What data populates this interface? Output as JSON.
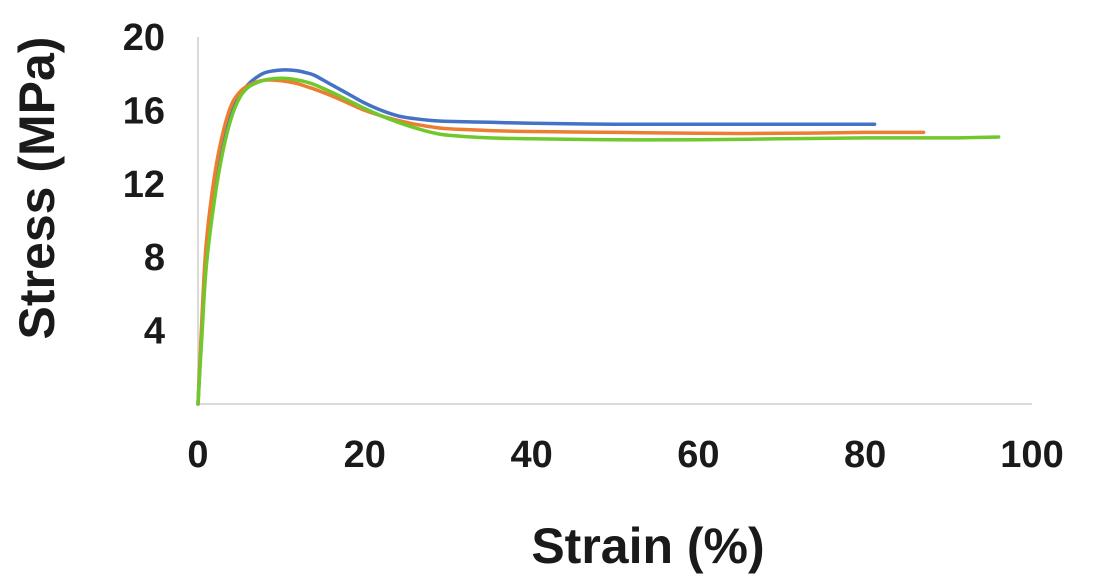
{
  "chart_data": {
    "type": "line",
    "title": "",
    "xlabel": "Strain (%)",
    "ylabel": "Stress (MPa)",
    "xlim": [
      0,
      100
    ],
    "ylim": [
      0,
      20
    ],
    "xticks": [
      "0",
      "20",
      "40",
      "60",
      "80",
      "100"
    ],
    "yticks": [
      "4",
      "8",
      "12",
      "16",
      "20"
    ],
    "grid": false,
    "legend": "none",
    "series": [
      {
        "color": "#4472C4",
        "x": [
          0,
          0.5,
          1,
          2,
          3,
          4,
          5,
          6,
          7,
          8,
          9,
          10,
          11,
          12,
          13,
          14,
          16,
          18,
          20,
          22,
          24,
          26,
          28,
          30,
          35,
          40,
          50,
          60,
          70,
          80,
          81
        ],
        "y": [
          0,
          4.5,
          8.0,
          11.5,
          14.0,
          15.8,
          16.8,
          17.4,
          17.8,
          18.05,
          18.15,
          18.2,
          18.2,
          18.15,
          18.05,
          17.9,
          17.4,
          16.9,
          16.4,
          16.0,
          15.7,
          15.55,
          15.45,
          15.4,
          15.35,
          15.3,
          15.25,
          15.25,
          15.25,
          15.25,
          15.25
        ]
      },
      {
        "color": "#ED7D31",
        "x": [
          0,
          0.5,
          1,
          2,
          3,
          4,
          5,
          6,
          7,
          8,
          9,
          10,
          11,
          12,
          13,
          14,
          16,
          18,
          20,
          22,
          24,
          26,
          28,
          30,
          35,
          40,
          50,
          60,
          70,
          80,
          87
        ],
        "y": [
          0,
          5.0,
          8.8,
          12.5,
          14.8,
          16.3,
          17.0,
          17.35,
          17.55,
          17.65,
          17.65,
          17.62,
          17.55,
          17.45,
          17.3,
          17.15,
          16.8,
          16.4,
          16.0,
          15.7,
          15.45,
          15.25,
          15.1,
          15.0,
          14.9,
          14.85,
          14.8,
          14.75,
          14.75,
          14.8,
          14.8
        ]
      },
      {
        "color": "#70C82D",
        "x": [
          0,
          0.5,
          1,
          2,
          3,
          4,
          5,
          6,
          7,
          8,
          9,
          10,
          11,
          12,
          13,
          14,
          16,
          18,
          20,
          22,
          24,
          26,
          28,
          30,
          35,
          40,
          50,
          60,
          70,
          80,
          90,
          96
        ],
        "y": [
          0,
          4.0,
          7.5,
          11.2,
          13.8,
          15.6,
          16.7,
          17.25,
          17.5,
          17.65,
          17.72,
          17.75,
          17.72,
          17.65,
          17.55,
          17.4,
          17.0,
          16.55,
          16.1,
          15.7,
          15.35,
          15.05,
          14.8,
          14.65,
          14.5,
          14.45,
          14.4,
          14.4,
          14.45,
          14.5,
          14.5,
          14.55
        ]
      }
    ]
  }
}
